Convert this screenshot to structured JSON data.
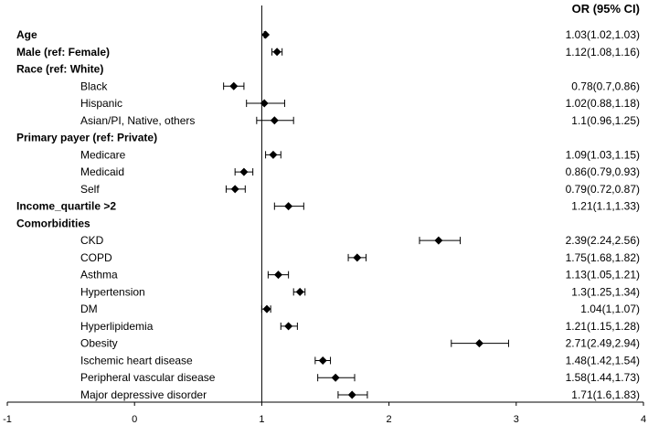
{
  "chart_data": {
    "type": "forest",
    "title": "",
    "header": "OR (95% CI)",
    "xlabel": "",
    "ylabel": "",
    "xlim": [
      -1,
      4
    ],
    "xticks": [
      -1,
      0,
      1,
      2,
      3,
      4
    ],
    "reference_line": 1,
    "colors": {
      "marker": "#000000",
      "axis": "#000000"
    },
    "rows": [
      {
        "label": "Age",
        "kind": "variable",
        "or": 1.03,
        "lo": 1.02,
        "hi": 1.03,
        "ci_text": "1.03(1.02,1.03)"
      },
      {
        "label": "Male (ref: Female)",
        "kind": "variable",
        "or": 1.12,
        "lo": 1.08,
        "hi": 1.16,
        "ci_text": "1.12(1.08,1.16)"
      },
      {
        "label": "Race (ref: White)",
        "kind": "group"
      },
      {
        "label": "Black",
        "kind": "level",
        "or": 0.78,
        "lo": 0.7,
        "hi": 0.86,
        "ci_text": "0.78(0.7,0.86)"
      },
      {
        "label": "Hispanic",
        "kind": "level",
        "or": 1.02,
        "lo": 0.88,
        "hi": 1.18,
        "ci_text": "1.02(0.88,1.18)"
      },
      {
        "label": "Asian/PI, Native, others",
        "kind": "level",
        "or": 1.1,
        "lo": 0.96,
        "hi": 1.25,
        "ci_text": "1.1(0.96,1.25)"
      },
      {
        "label": "Primary payer (ref: Private)",
        "kind": "group"
      },
      {
        "label": "Medicare",
        "kind": "level",
        "or": 1.09,
        "lo": 1.03,
        "hi": 1.15,
        "ci_text": "1.09(1.03,1.15)"
      },
      {
        "label": "Medicaid",
        "kind": "level",
        "or": 0.86,
        "lo": 0.79,
        "hi": 0.93,
        "ci_text": "0.86(0.79,0.93)"
      },
      {
        "label": "Self",
        "kind": "level",
        "or": 0.79,
        "lo": 0.72,
        "hi": 0.87,
        "ci_text": "0.79(0.72,0.87)"
      },
      {
        "label": "Income_quartile >2",
        "kind": "variable",
        "or": 1.21,
        "lo": 1.1,
        "hi": 1.33,
        "ci_text": "1.21(1.1,1.33)"
      },
      {
        "label": "Comorbidities",
        "kind": "group"
      },
      {
        "label": "CKD",
        "kind": "level",
        "or": 2.39,
        "lo": 2.24,
        "hi": 2.56,
        "ci_text": "2.39(2.24,2.56)"
      },
      {
        "label": "COPD",
        "kind": "level",
        "or": 1.75,
        "lo": 1.68,
        "hi": 1.82,
        "ci_text": "1.75(1.68,1.82)"
      },
      {
        "label": "Asthma",
        "kind": "level",
        "or": 1.13,
        "lo": 1.05,
        "hi": 1.21,
        "ci_text": "1.13(1.05,1.21)"
      },
      {
        "label": "Hypertension",
        "kind": "level",
        "or": 1.3,
        "lo": 1.25,
        "hi": 1.34,
        "ci_text": "1.3(1.25,1.34)"
      },
      {
        "label": "DM",
        "kind": "level",
        "or": 1.04,
        "lo": 1,
        "hi": 1.07,
        "ci_text": "1.04(1,1.07)"
      },
      {
        "label": "Hyperlipidemia",
        "kind": "level",
        "or": 1.21,
        "lo": 1.15,
        "hi": 1.28,
        "ci_text": "1.21(1.15,1.28)"
      },
      {
        "label": "Obesity",
        "kind": "level",
        "or": 2.71,
        "lo": 2.49,
        "hi": 2.94,
        "ci_text": "2.71(2.49,2.94)"
      },
      {
        "label": "Ischemic heart disease",
        "kind": "level",
        "or": 1.48,
        "lo": 1.42,
        "hi": 1.54,
        "ci_text": "1.48(1.42,1.54)"
      },
      {
        "label": "Peripheral vascular disease",
        "kind": "level",
        "or": 1.58,
        "lo": 1.44,
        "hi": 1.73,
        "ci_text": "1.58(1.44,1.73)"
      },
      {
        "label": "Major depressive disorder",
        "kind": "level",
        "or": 1.71,
        "lo": 1.6,
        "hi": 1.83,
        "ci_text": "1.71(1.6,1.83)"
      }
    ]
  }
}
